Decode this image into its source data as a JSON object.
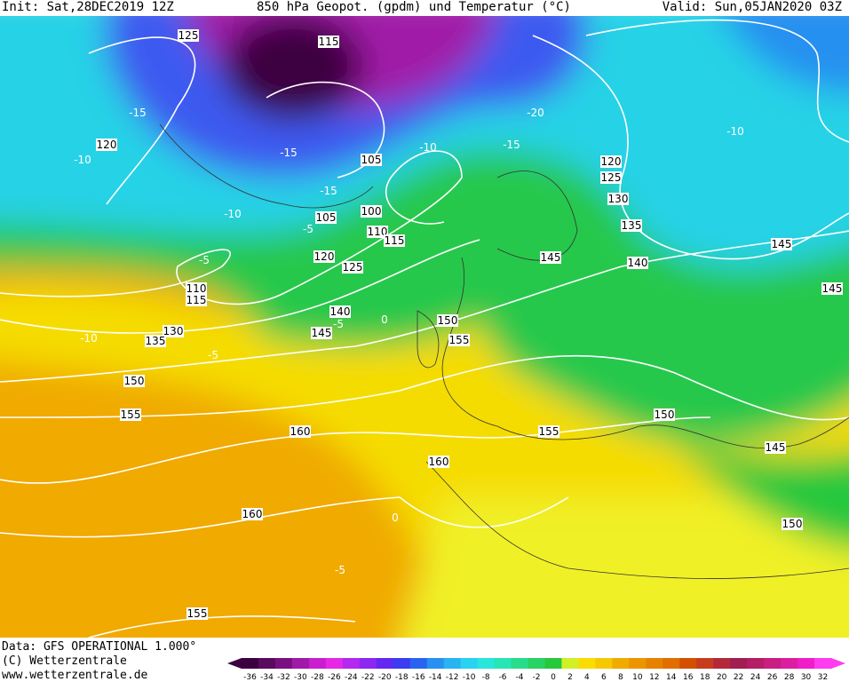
{
  "header": {
    "init": "Init: Sat,28DEC2019 12Z",
    "title": "850 hPa Geopot. (gpdm) und Temperatur (°C)",
    "valid": "Valid: Sun,05JAN2020 03Z"
  },
  "footer": {
    "data": "Data: GFS OPERATIONAL 1.000°",
    "copyright": "(C) Wetterzentrale",
    "url": "www.wetterzentrale.de"
  },
  "geopotential_labels": [
    "125",
    "115",
    "120",
    "105",
    "120",
    "125",
    "130",
    "105",
    "100",
    "110",
    "115",
    "135",
    "145",
    "120",
    "125",
    "145",
    "140",
    "110",
    "115",
    "145",
    "140",
    "150",
    "130",
    "135",
    "145",
    "155",
    "150",
    "155",
    "150",
    "160",
    "155",
    "145",
    "160",
    "160",
    "150",
    "155"
  ],
  "temperature_labels": [
    "-15",
    "-10",
    "-20",
    "-15",
    "-10",
    "-10",
    "-5",
    "-10",
    "-10",
    "-5",
    "-5",
    "0",
    "-5",
    "-5",
    "-15",
    "-15",
    "0"
  ],
  "legend": {
    "values": [
      -36,
      -34,
      -32,
      -30,
      -28,
      -26,
      -24,
      -22,
      -20,
      -18,
      -16,
      -14,
      -12,
      -10,
      -8,
      -6,
      -4,
      -2,
      0,
      2,
      4,
      6,
      8,
      10,
      12,
      14,
      16,
      18,
      20,
      22,
      24,
      26,
      28,
      30,
      32
    ],
    "colors": [
      "#3c0041",
      "#5a0a5f",
      "#7a1080",
      "#a01aa8",
      "#c81ed0",
      "#e628e6",
      "#b428f0",
      "#8c28f0",
      "#6428f0",
      "#3c3cf0",
      "#2864f0",
      "#2890f0",
      "#28b4f0",
      "#28d2f0",
      "#28e6dc",
      "#28e6b4",
      "#28dc8c",
      "#28d264",
      "#28c83c",
      "#d2f028",
      "#fadc00",
      "#f5c800",
      "#f0aa00",
      "#eb9600",
      "#e68200",
      "#e16e00",
      "#d25000",
      "#c83c1e",
      "#b4283c",
      "#a01e50",
      "#b41e64",
      "#c81e82",
      "#dc1ea0",
      "#f01ec8",
      "#ff3cf0"
    ]
  }
}
